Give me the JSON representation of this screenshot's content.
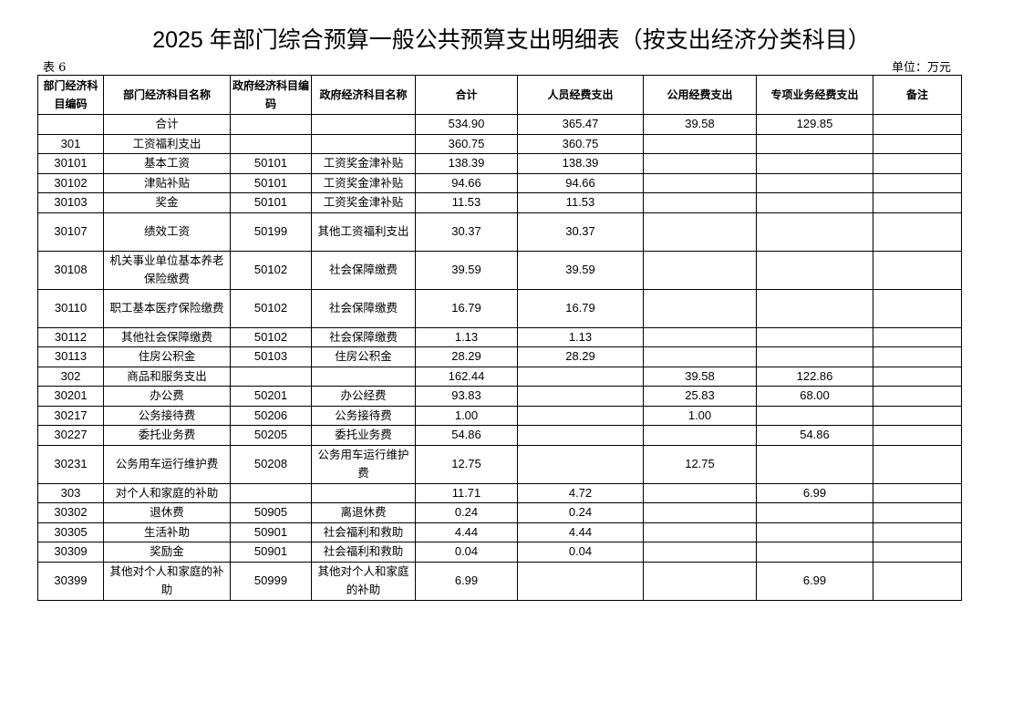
{
  "title": "2025 年部门综合预算一般公共预算支出明细表（按支出经济分类科目）",
  "table_no": "表 6",
  "unit": "单位：万元",
  "headers": [
    "部门经济科目编码",
    "部门经济科目名称",
    "政府经济科目编码",
    "政府经济科目名称",
    "合计",
    "人员经费支出",
    "公用经费支出",
    "专项业务经费支出",
    "备注"
  ],
  "rows": [
    [
      "",
      "合计",
      "",
      "",
      "534.90",
      "365.47",
      "39.58",
      "129.85",
      ""
    ],
    [
      "301",
      "工资福利支出",
      "",
      "",
      "360.75",
      "360.75",
      "",
      "",
      ""
    ],
    [
      "30101",
      "基本工资",
      "50101",
      "工资奖金津补贴",
      "138.39",
      "138.39",
      "",
      "",
      ""
    ],
    [
      "30102",
      "津贴补贴",
      "50101",
      "工资奖金津补贴",
      "94.66",
      "94.66",
      "",
      "",
      ""
    ],
    [
      "30103",
      "奖金",
      "50101",
      "工资奖金津补贴",
      "11.53",
      "11.53",
      "",
      "",
      ""
    ],
    [
      "30107",
      "绩效工资",
      "50199",
      "其他工资福利支出",
      "30.37",
      "30.37",
      "",
      "",
      ""
    ],
    [
      "30108",
      "机关事业单位基本养老保险缴费",
      "50102",
      "社会保障缴费",
      "39.59",
      "39.59",
      "",
      "",
      ""
    ],
    [
      "30110",
      "职工基本医疗保险缴费",
      "50102",
      "社会保障缴费",
      "16.79",
      "16.79",
      "",
      "",
      ""
    ],
    [
      "30112",
      "其他社会保障缴费",
      "50102",
      "社会保障缴费",
      "1.13",
      "1.13",
      "",
      "",
      ""
    ],
    [
      "30113",
      "住房公积金",
      "50103",
      "住房公积金",
      "28.29",
      "28.29",
      "",
      "",
      ""
    ],
    [
      "302",
      "商品和服务支出",
      "",
      "",
      "162.44",
      "",
      "39.58",
      "122.86",
      ""
    ],
    [
      "30201",
      "办公费",
      "50201",
      "办公经费",
      "93.83",
      "",
      "25.83",
      "68.00",
      ""
    ],
    [
      "30217",
      "公务接待费",
      "50206",
      "公务接待费",
      "1.00",
      "",
      "1.00",
      "",
      ""
    ],
    [
      "30227",
      "委托业务费",
      "50205",
      "委托业务费",
      "54.86",
      "",
      "",
      "54.86",
      ""
    ],
    [
      "30231",
      "公务用车运行维护费",
      "50208",
      "公务用车运行维护费",
      "12.75",
      "",
      "12.75",
      "",
      ""
    ],
    [
      "303",
      "对个人和家庭的补助",
      "",
      "",
      "11.71",
      "4.72",
      "",
      "6.99",
      ""
    ],
    [
      "30302",
      "退休费",
      "50905",
      "离退休费",
      "0.24",
      "0.24",
      "",
      "",
      ""
    ],
    [
      "30305",
      "生活补助",
      "50901",
      "社会福利和救助",
      "4.44",
      "4.44",
      "",
      "",
      ""
    ],
    [
      "30309",
      "奖励金",
      "50901",
      "社会福利和救助",
      "0.04",
      "0.04",
      "",
      "",
      ""
    ],
    [
      "30399",
      "其他对个人和家庭的补助",
      "50999",
      "其他对个人和家庭的补助",
      "6.99",
      "",
      "",
      "6.99",
      ""
    ]
  ]
}
